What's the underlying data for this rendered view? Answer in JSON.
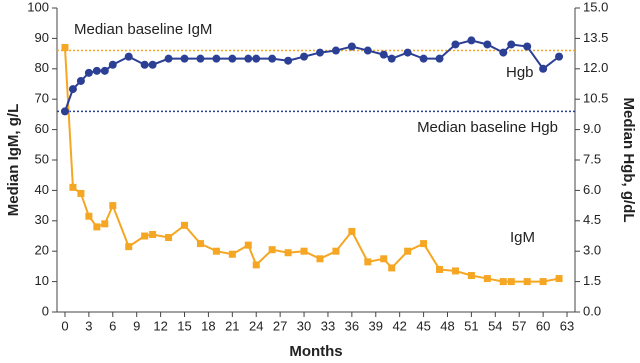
{
  "chart_data": {
    "type": "line",
    "x_label": "Months",
    "y_label": "Median IgM, g/L",
    "y2_label": "Median Hgb, g/dL",
    "x": [
      0,
      1,
      2,
      3,
      4,
      5,
      6,
      8,
      10,
      11,
      13,
      15,
      17,
      19,
      21,
      23,
      24,
      26,
      28,
      30,
      32,
      34,
      36,
      38,
      40,
      41,
      43,
      45,
      47,
      49,
      51,
      53,
      55,
      56,
      58,
      60,
      62
    ],
    "series": [
      {
        "name": "IgM",
        "color": "#f5a623",
        "marker": "square",
        "values": [
          87,
          41,
          39,
          31.5,
          28,
          29,
          35,
          21.5,
          25,
          25.5,
          24.5,
          28.5,
          22.5,
          20,
          19,
          22,
          15.5,
          20.5,
          19.5,
          20,
          17.5,
          20,
          26.5,
          16.5,
          17.5,
          14.5,
          20,
          22.5,
          14,
          13.5,
          12,
          11,
          10,
          10,
          10,
          10,
          11
        ]
      },
      {
        "name": "Hgb",
        "color": "#2b3f95",
        "marker": "circle",
        "axis": "y2",
        "values": [
          9.9,
          11.0,
          11.4,
          11.8,
          11.9,
          11.9,
          12.2,
          12.6,
          12.2,
          12.2,
          12.5,
          12.5,
          12.5,
          12.5,
          12.5,
          12.5,
          12.5,
          12.5,
          12.4,
          12.6,
          12.8,
          12.9,
          13.1,
          12.9,
          12.7,
          12.5,
          12.8,
          12.5,
          12.5,
          13.2,
          13.4,
          13.2,
          12.8,
          13.2,
          13.1,
          12.0,
          12.6
        ]
      }
    ],
    "reference_lines": [
      {
        "label": "Median baseline IgM",
        "value": 86,
        "axis": "y",
        "color": "#f5a623"
      },
      {
        "label": "Median baseline Hgb",
        "value": 9.9,
        "axis": "y2",
        "color": "#2b3f95"
      }
    ],
    "xlim": [
      -1,
      64
    ],
    "xticks": [
      0,
      3,
      6,
      9,
      12,
      15,
      18,
      21,
      24,
      27,
      30,
      33,
      36,
      39,
      42,
      45,
      48,
      51,
      54,
      57,
      60,
      63
    ],
    "ylim": [
      0,
      100
    ],
    "yticks": [
      0,
      10,
      20,
      30,
      40,
      50,
      60,
      70,
      80,
      90,
      100
    ],
    "y2lim": [
      0,
      15
    ],
    "y2ticks": [
      {
        "value": 0,
        "label": "0.0"
      },
      1.5,
      {
        "value": 3,
        "label": "3.0"
      },
      4.5,
      {
        "value": 6,
        "label": "6.0"
      },
      7.5,
      {
        "value": 9,
        "label": "9.0"
      },
      10.5,
      {
        "value": 12,
        "label": "12.0"
      },
      13.5,
      {
        "value": 15,
        "label": "15.0"
      }
    ],
    "grid": false
  }
}
